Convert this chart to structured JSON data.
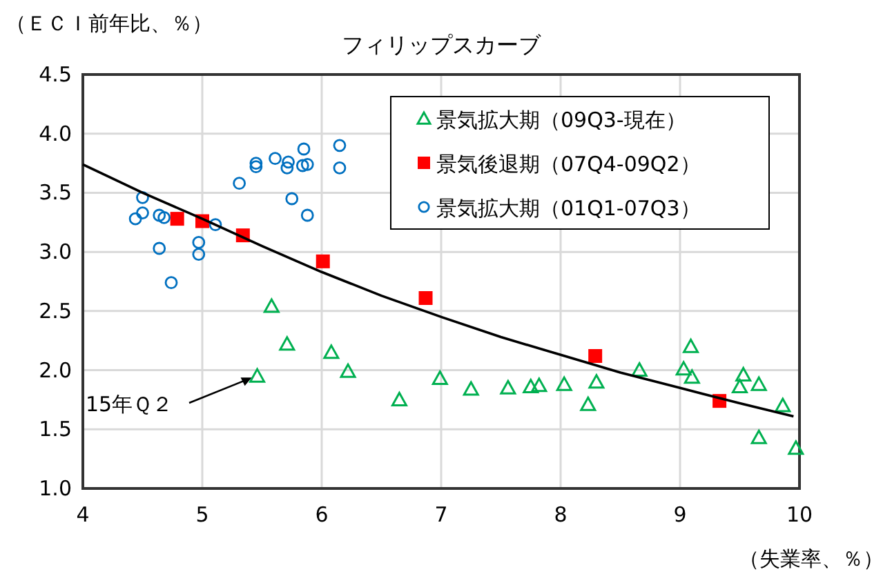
{
  "chart_data": {
    "type": "scatter",
    "title": "フィリップスカーブ",
    "xlabel": "（失業率、％）",
    "ylabel": "（ＥＣＩ前年比、％）",
    "xlim": [
      4,
      10
    ],
    "xticks": [
      4,
      5,
      6,
      7,
      8,
      9,
      10
    ],
    "ylim": [
      1,
      4.5
    ],
    "yticks": [
      {
        "value": 1,
        "label": "1.0"
      },
      1.5,
      {
        "value": 2,
        "label": "2.0"
      },
      2.5,
      {
        "value": 3,
        "label": "3.0"
      },
      3.5,
      {
        "value": 4,
        "label": "4.0"
      },
      4.5
    ],
    "grid": true,
    "legend": "top right",
    "annotations": [
      {
        "text": "15年Ｑ２",
        "x": 5.46,
        "y": 1.95
      }
    ],
    "series": [
      {
        "name": "景気拡大期（09Q3-現在）",
        "color": "#00b050",
        "marker": "triangle",
        "x": [
          5.58,
          5.71,
          6.08,
          6.22,
          5.46,
          6.65,
          6.99,
          7.25,
          7.56,
          7.75,
          7.82,
          8.03,
          8.23,
          8.3,
          8.66,
          9.03,
          9.09,
          9.1,
          9.53,
          9.5,
          9.66,
          9.66,
          9.86,
          9.97
        ],
        "values": [
          2.54,
          2.22,
          2.15,
          1.99,
          1.95,
          1.75,
          1.93,
          1.84,
          1.85,
          1.86,
          1.87,
          1.88,
          1.71,
          1.9,
          2.0,
          2.01,
          2.2,
          1.94,
          1.96,
          1.86,
          1.88,
          1.43,
          1.7,
          1.34
        ]
      },
      {
        "name": "景気後退期（07Q4-09Q2）",
        "color": "#ff0000",
        "marker": "square",
        "x": [
          4.79,
          5.0,
          5.34,
          6.01,
          6.87,
          8.29,
          9.33
        ],
        "values": [
          3.28,
          3.26,
          3.14,
          2.92,
          2.61,
          2.12,
          1.74
        ]
      },
      {
        "name": "景気拡大期（01Q1-07Q3）",
        "color": "#0070c0",
        "marker": "circle",
        "x": [
          6.15,
          6.15,
          5.85,
          5.88,
          5.84,
          5.72,
          5.71,
          5.61,
          5.45,
          5.45,
          5.31,
          5.75,
          5.88,
          4.5,
          4.5,
          4.44,
          4.64,
          4.68,
          5.11,
          4.97,
          4.97,
          4.64,
          4.74
        ],
        "values": [
          3.9,
          3.71,
          3.87,
          3.74,
          3.73,
          3.76,
          3.71,
          3.79,
          3.75,
          3.72,
          3.58,
          3.45,
          3.31,
          3.46,
          3.33,
          3.28,
          3.31,
          3.29,
          3.23,
          3.08,
          2.98,
          3.03,
          2.74
        ]
      },
      {
        "type": "line",
        "color": "#000000",
        "marker": "none",
        "x": [
          4,
          4.5,
          5,
          5.5,
          6,
          6.5,
          7,
          7.5,
          8,
          8.5,
          9,
          9.5,
          9.95
        ],
        "values": [
          3.74,
          3.5,
          3.28,
          3.05,
          2.83,
          2.63,
          2.45,
          2.28,
          2.13,
          1.98,
          1.85,
          1.72,
          1.61
        ]
      }
    ]
  }
}
